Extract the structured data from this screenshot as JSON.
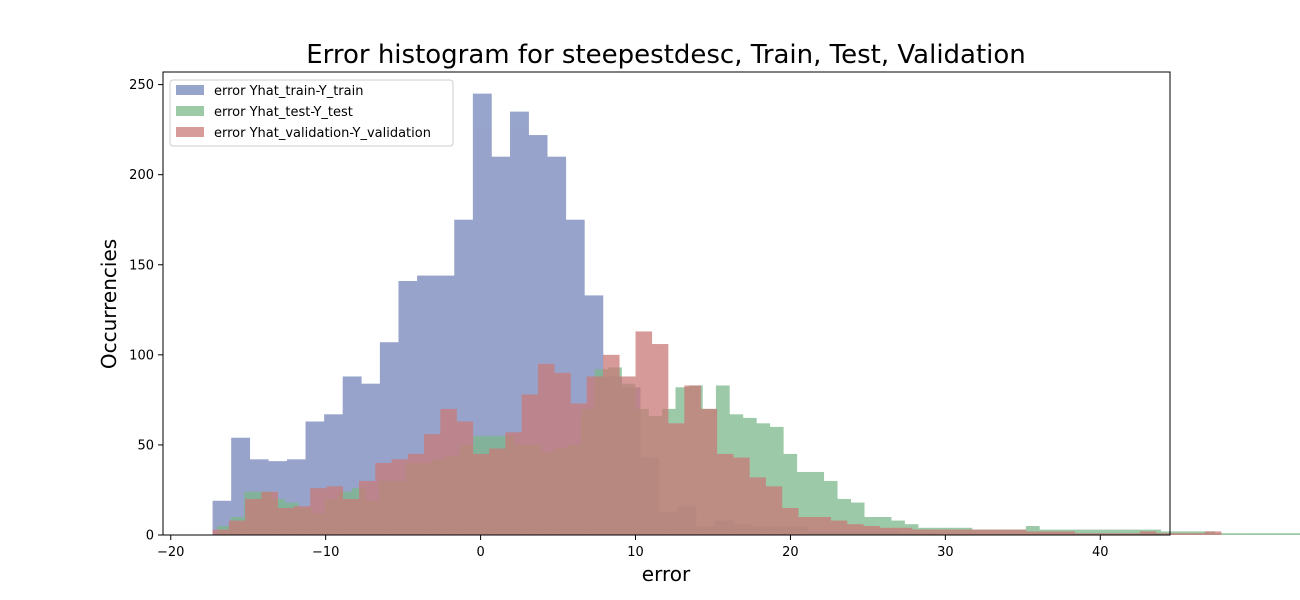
{
  "chart_data": {
    "type": "bar",
    "subtype": "histogram-overlay",
    "title": "Error histogram for steepestdesc, Train, Test, Validation",
    "xlabel": "error",
    "ylabel": "Occurrencies",
    "xlim": [
      -20.5,
      44.5
    ],
    "ylim": [
      0,
      257
    ],
    "xticks": [
      -20,
      -10,
      0,
      10,
      20,
      30,
      40
    ],
    "xtick_labels": [
      "−20",
      "−10",
      "0",
      "10",
      "20",
      "30",
      "40"
    ],
    "yticks": [
      0,
      50,
      100,
      150,
      200,
      250
    ],
    "ytick_labels": [
      "0",
      "50",
      "100",
      "150",
      "200",
      "250"
    ],
    "grid": false,
    "legend_position": "top-left",
    "series": [
      {
        "name": "error Yhat_train-Y_train",
        "color": "#8594C2",
        "alpha": 0.85,
        "bin_start": -17.3,
        "bin_width": 1.2,
        "counts": [
          19,
          54,
          42,
          41,
          42,
          63,
          67,
          88,
          84,
          107,
          141,
          144,
          144,
          175,
          245,
          210,
          235,
          222,
          210,
          175,
          133,
          88,
          82,
          43,
          13,
          16,
          5,
          8,
          6,
          5,
          5,
          5,
          2,
          2,
          2,
          2,
          2,
          1,
          1,
          0,
          0,
          0,
          0,
          0,
          0,
          0,
          0,
          0,
          0,
          0,
          1
        ]
      },
      {
        "name": "error Yhat_test-Y_test",
        "color": "#7BB88A",
        "alpha": 0.75,
        "bin_start": -17.0,
        "bin_width": 0.87,
        "counts": [
          5,
          10,
          24,
          24,
          20,
          18,
          15,
          12,
          20,
          24,
          26,
          19,
          30,
          30,
          40,
          40,
          42,
          44,
          50,
          55,
          55,
          55,
          50,
          50,
          46,
          48,
          50,
          70,
          92,
          93,
          84,
          70,
          66,
          70,
          82,
          83,
          70,
          83,
          67,
          65,
          62,
          60,
          45,
          35,
          35,
          30,
          20,
          18,
          10,
          10,
          8,
          6,
          4,
          4,
          4,
          4,
          3,
          3,
          3,
          3,
          5,
          3,
          3,
          3,
          3,
          3,
          3,
          3,
          3,
          3,
          2,
          2,
          2,
          2,
          1,
          1,
          1,
          1,
          1,
          1,
          1,
          1
        ]
      },
      {
        "name": "error Yhat_validation-Y_validation",
        "color": "#C97A78",
        "alpha": 0.75,
        "bin_start": -17.3,
        "bin_width": 1.05,
        "counts": [
          3,
          8,
          20,
          24,
          15,
          16,
          26,
          27,
          20,
          30,
          40,
          42,
          45,
          56,
          70,
          63,
          45,
          48,
          57,
          78,
          95,
          90,
          73,
          88,
          100,
          88,
          113,
          106,
          62,
          83,
          70,
          45,
          43,
          32,
          27,
          15,
          10,
          10,
          8,
          6,
          5,
          4,
          4,
          3,
          3,
          3,
          3,
          3,
          3,
          3,
          2,
          2,
          2,
          1,
          1,
          1,
          1,
          2,
          1,
          1,
          1,
          2
        ]
      }
    ]
  }
}
